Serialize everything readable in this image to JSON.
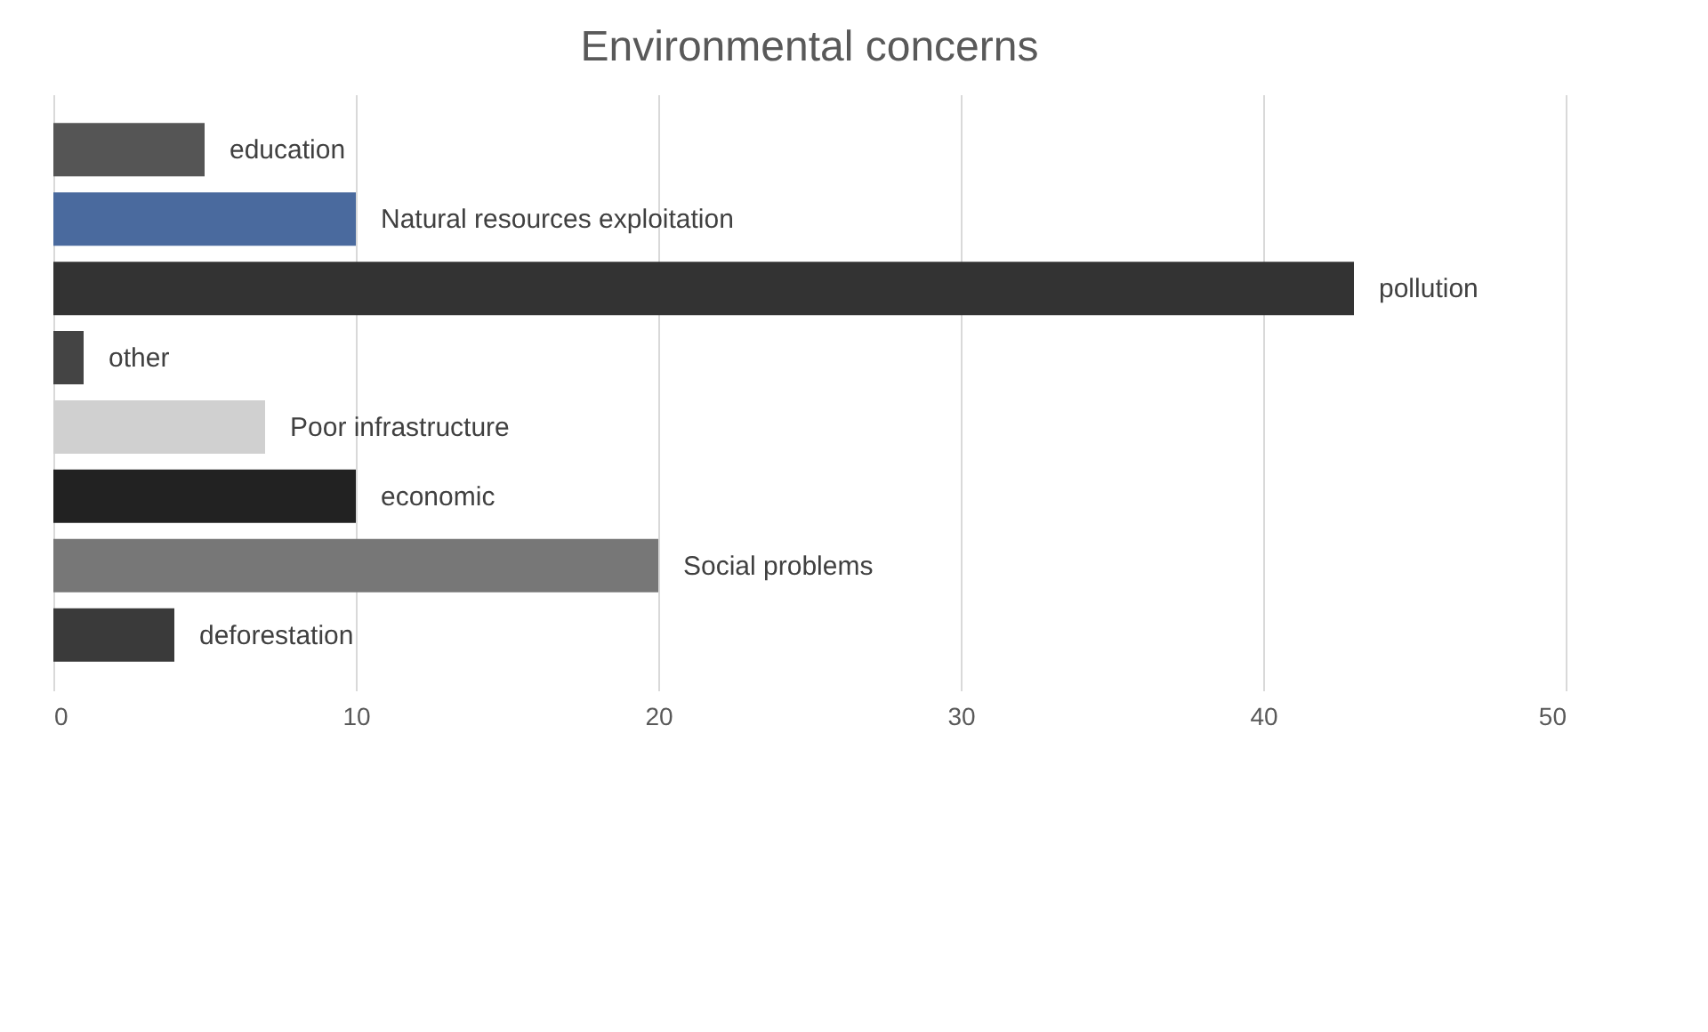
{
  "chart_data": {
    "type": "bar",
    "orientation": "horizontal",
    "title": "Environmental concerns",
    "categories": [
      "education",
      "Natural resources exploitation",
      "pollution",
      "other",
      "Poor infrastructure",
      "economic",
      "Social problems",
      "deforestation"
    ],
    "values": [
      5,
      10,
      43,
      1,
      7,
      10,
      20,
      4
    ],
    "colors": [
      "#555555",
      "#4a6a9e",
      "#333333",
      "#444444",
      "#d0d0d0",
      "#222222",
      "#777777",
      "#3a3a3a"
    ],
    "xlim": [
      0,
      50
    ],
    "xticks": [
      0,
      10,
      20,
      30,
      40,
      50
    ],
    "grid": "x",
    "tick_labels": "x"
  }
}
